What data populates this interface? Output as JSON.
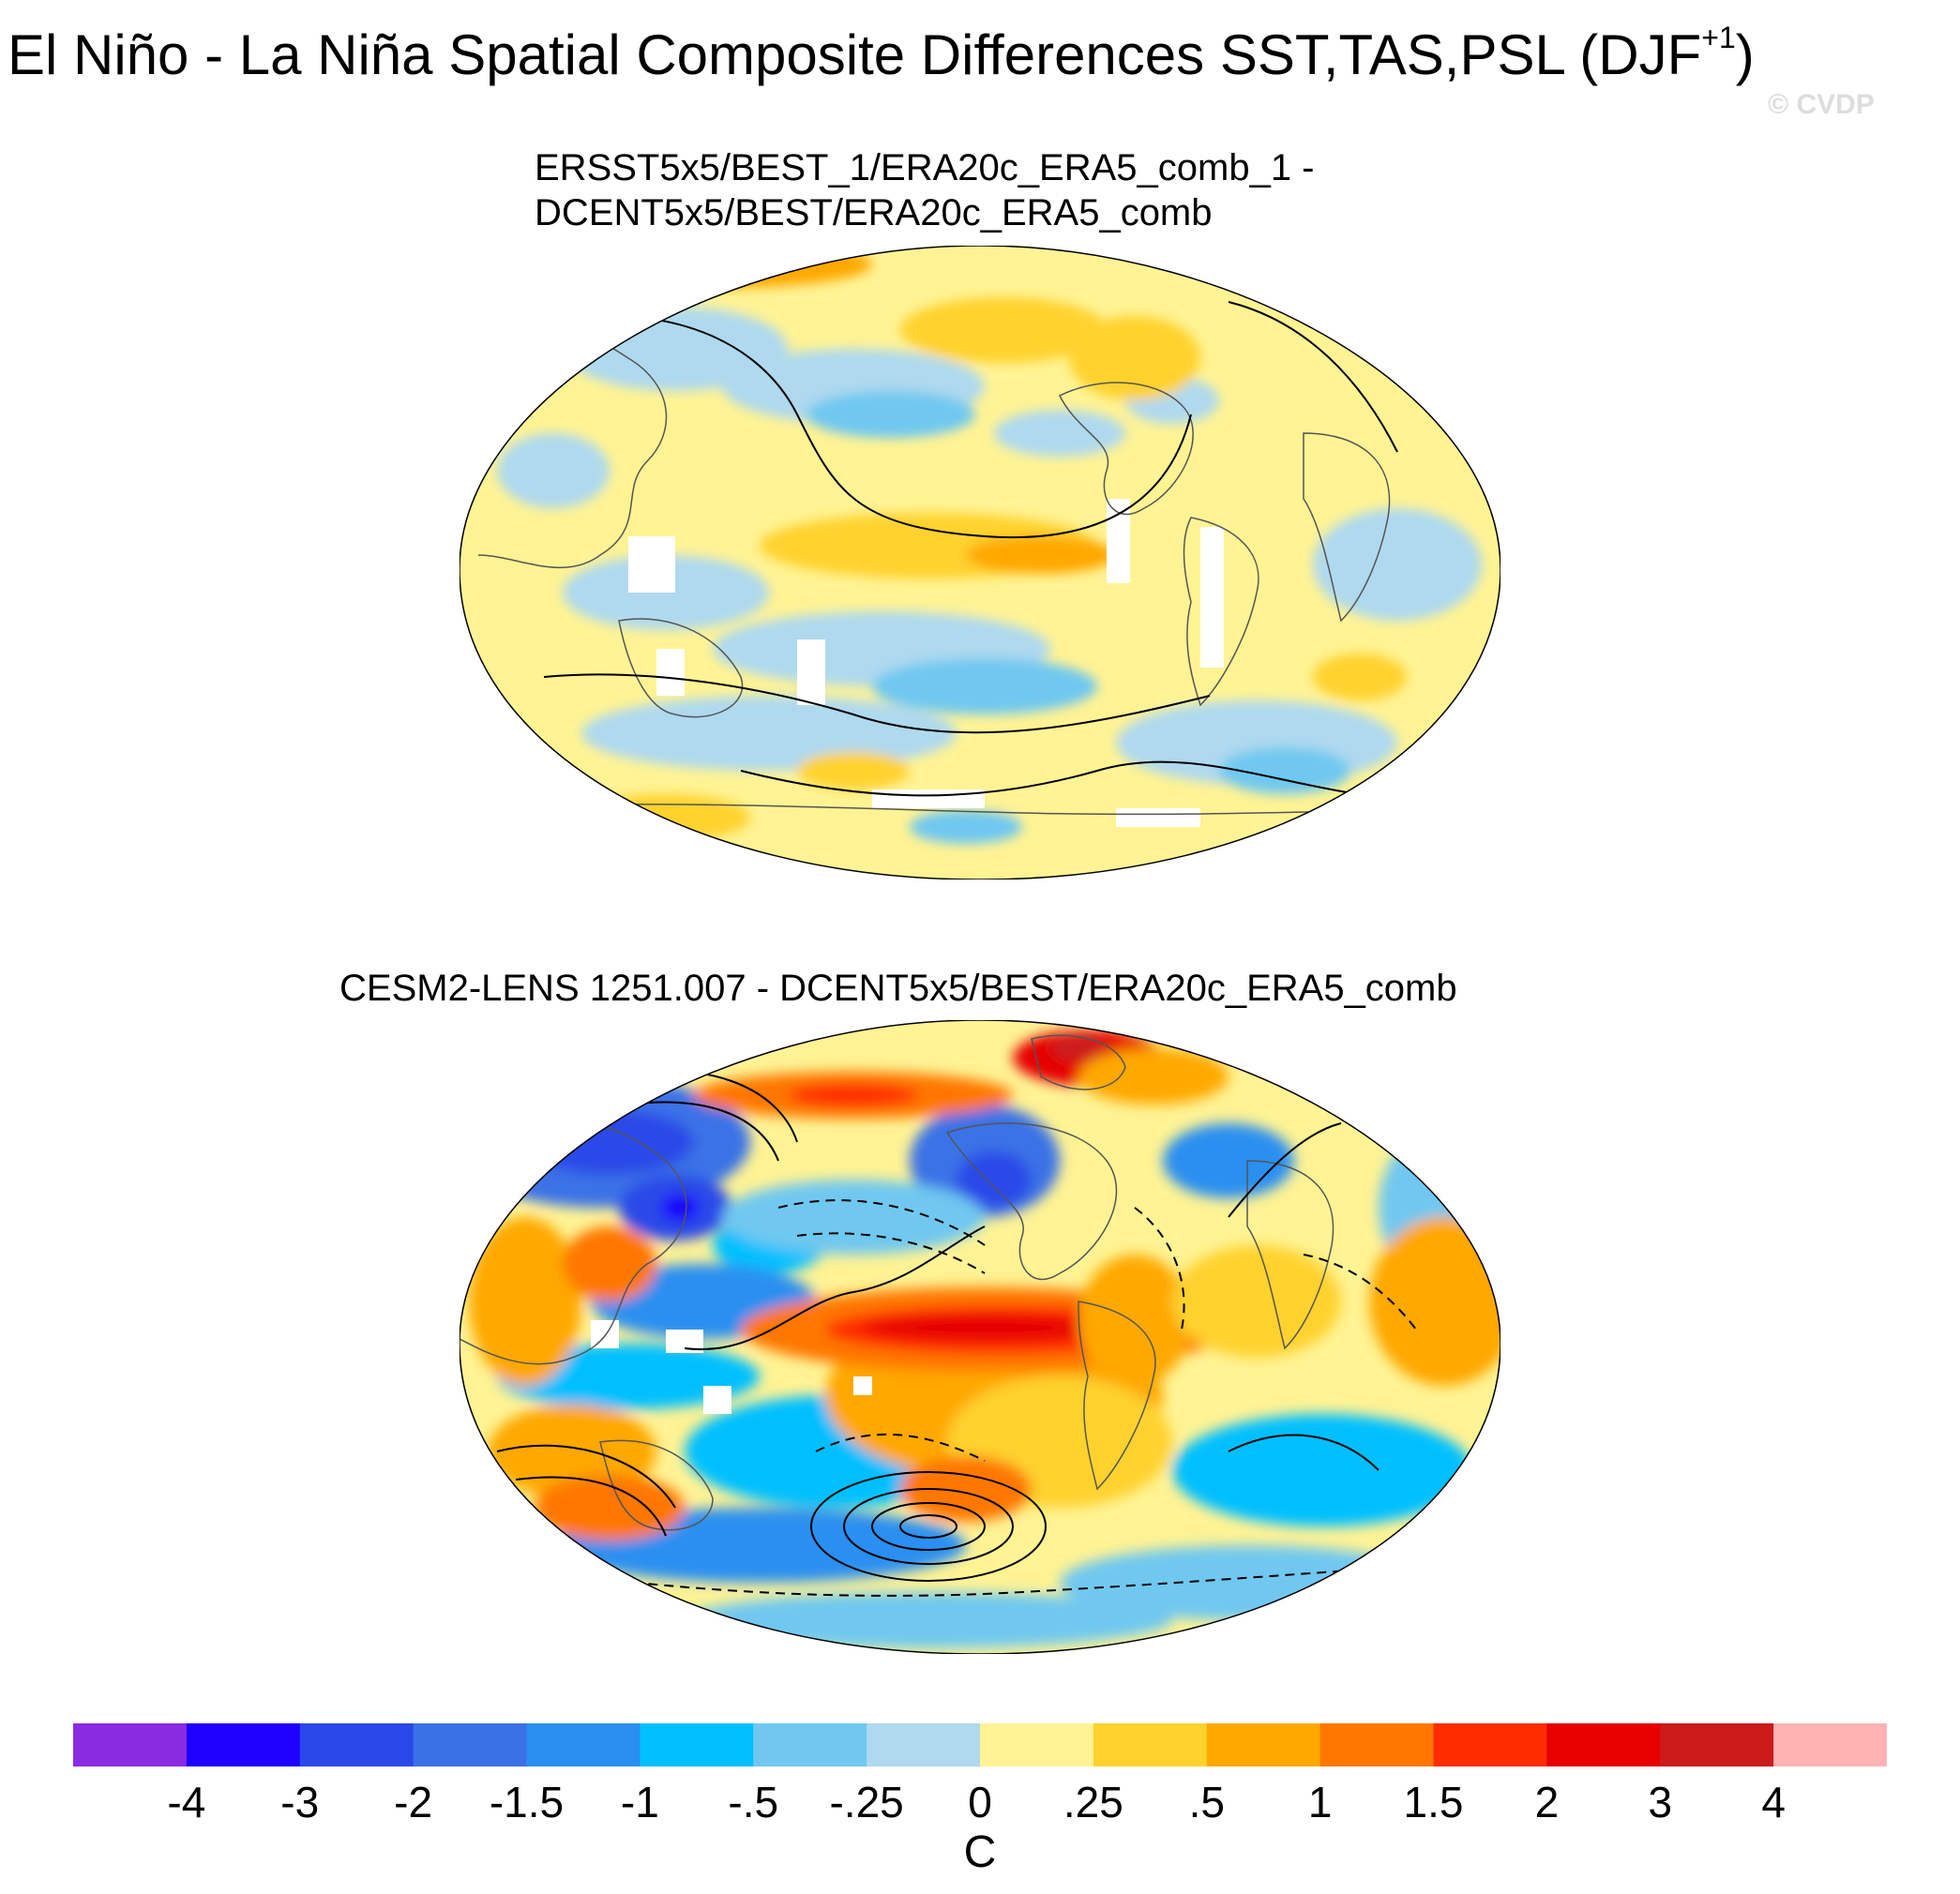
{
  "title": {
    "main": "El Niño - La Niña Spatial Composite Differences SST,TAS,PSL (DJF",
    "superscript": "+1",
    "closing": ")"
  },
  "watermark": "© CVDP",
  "panels": [
    {
      "title_line1": "ERSST5x5/BEST_1/ERA20c_ERA5_comb_1 -",
      "title_line2": "DCENT5x5/BEST/ERA20c_ERA5_comb",
      "projection": "Winkel tripel / Robinson-like, Pacific-centered",
      "dominant_anomaly": "weak, mostly yellow/light blue (|dT| < 0.5 C)"
    },
    {
      "title_line1": "CESM2-LENS 1251.007 - DCENT5x5/BEST/ERA20c_ERA5_comb",
      "projection": "Winkel tripel / Robinson-like, Pacific-centered",
      "dominant_anomaly": "strong warm equatorial Pacific tongue (> 2 C), cold Eurasia/North America"
    }
  ],
  "colorbar": {
    "unit": "C",
    "labels": [
      "-4",
      "-3",
      "-2",
      "-1.5",
      "-1",
      "-.5",
      "-.25",
      "0",
      ".25",
      ".5",
      "1",
      "1.5",
      "2",
      "3",
      "4"
    ],
    "colors": [
      "#8a2be2",
      "#1f00ff",
      "#2a48e8",
      "#3a72e6",
      "#2a8ff0",
      "#00bfff",
      "#70c8f0",
      "#afd9ef",
      "#fff394",
      "#ffd22e",
      "#ffa800",
      "#ff7700",
      "#ff2c00",
      "#e60000",
      "#cc1b1b",
      "#ffb3b3"
    ]
  }
}
